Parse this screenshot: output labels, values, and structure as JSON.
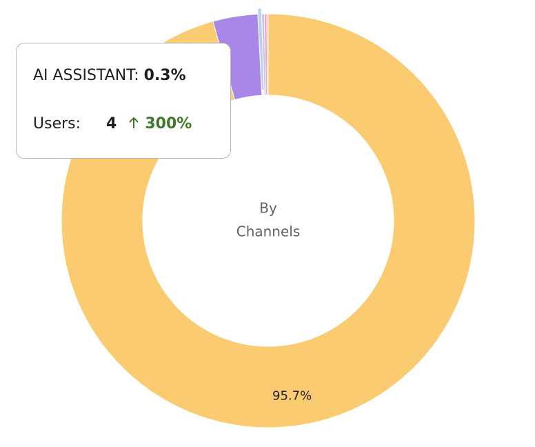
{
  "chart_data": {
    "type": "donut",
    "values": [
      95.7,
      3.5,
      0.3,
      0.2,
      0.2,
      0.1
    ],
    "value_labels": [
      "95.7%",
      null,
      null,
      null,
      null,
      null
    ],
    "colors": [
      "#fbcb72",
      "#a987e6",
      "#b6d3f5",
      "#d7b8f0",
      "#f3a2bf",
      "#f5a88a"
    ],
    "highlight": 2,
    "center_label": [
      "By",
      "Channels"
    ]
  },
  "tooltip": {
    "name": "AI ASSISTANT:",
    "share": "0.3%",
    "users_label": "Users:",
    "users": "4",
    "change": "300%"
  }
}
